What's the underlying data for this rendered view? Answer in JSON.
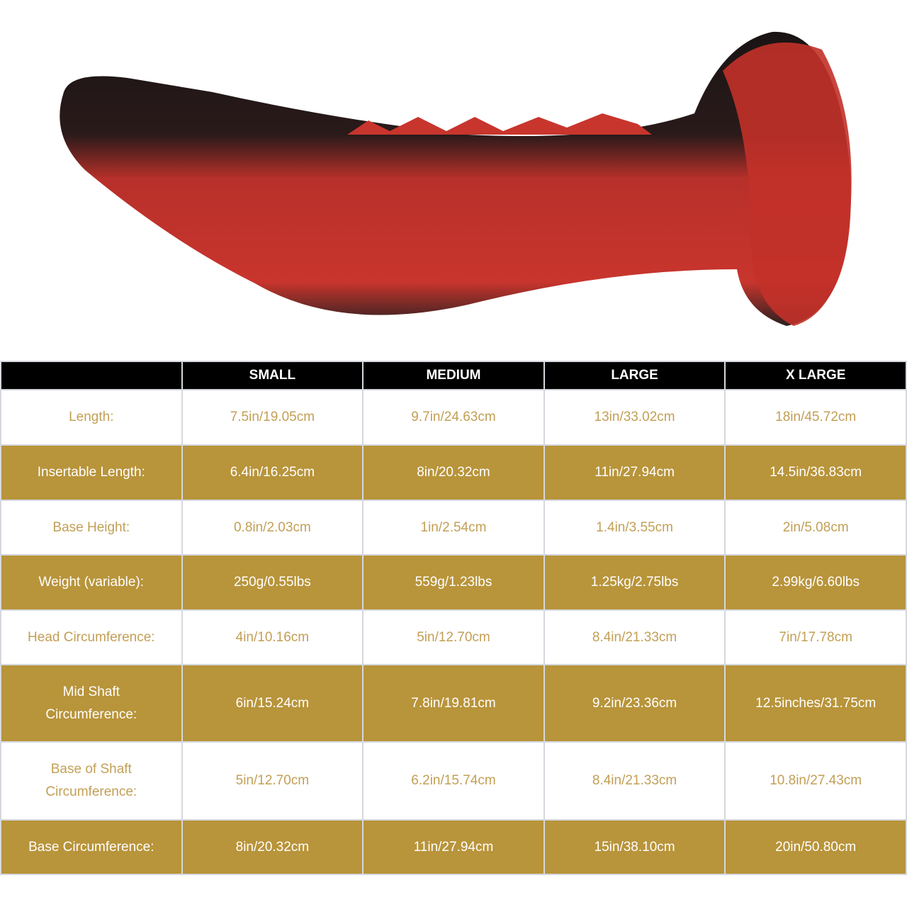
{
  "colors": {
    "header_bg": "#000000",
    "gold": "#b8943a",
    "gold_text": "#c29f55",
    "border": "#d5d8de"
  },
  "product_image": {
    "description_icon": "product-photo",
    "colors": [
      "#c8322b",
      "#111111"
    ]
  },
  "table": {
    "headers": [
      "",
      "SMALL",
      "MEDIUM",
      "LARGE",
      "X LARGE"
    ],
    "rows": [
      {
        "label": "Length:",
        "values": [
          "7.5in/19.05cm",
          "9.7in/24.63cm",
          "13in/33.02cm",
          "18in/45.72cm"
        ]
      },
      {
        "label": "Insertable Length:",
        "values": [
          "6.4in/16.25cm",
          "8in/20.32cm",
          "11in/27.94cm",
          "14.5in/36.83cm"
        ]
      },
      {
        "label": "Base Height:",
        "values": [
          "0.8in/2.03cm",
          "1in/2.54cm",
          "1.4in/3.55cm",
          "2in/5.08cm"
        ]
      },
      {
        "label": "Weight (variable):",
        "values": [
          "250g/0.55lbs",
          "559g/1.23lbs",
          "1.25kg/2.75lbs",
          "2.99kg/6.60lbs"
        ]
      },
      {
        "label": "Head Circumference:",
        "values": [
          "4in/10.16cm",
          "5in/12.70cm",
          "8.4in/21.33cm",
          "7in/17.78cm"
        ]
      },
      {
        "label": "Mid Shaft\nCircumference:",
        "values": [
          "6in/15.24cm",
          "7.8in/19.81cm",
          "9.2in/23.36cm",
          "12.5inches/31.75cm"
        ]
      },
      {
        "label": "Base of Shaft\nCircumference:",
        "values": [
          "5in/12.70cm",
          "6.2in/15.74cm",
          "8.4in/21.33cm",
          "10.8in/27.43cm"
        ]
      },
      {
        "label": "Base Circumference:",
        "values": [
          "8in/20.32cm",
          "11in/27.94cm",
          "15in/38.10cm",
          "20in/50.80cm"
        ]
      }
    ]
  }
}
